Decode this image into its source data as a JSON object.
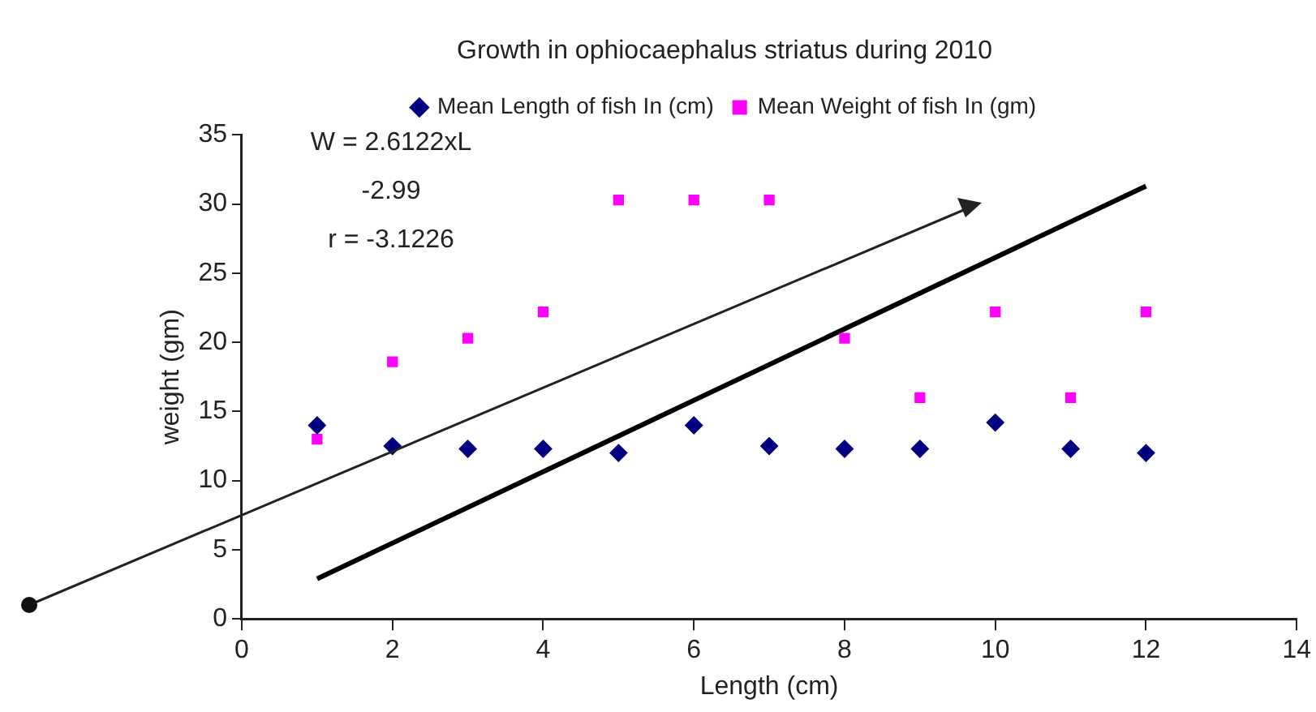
{
  "chart_data": {
    "type": "scatter",
    "title": "Growth in ophiocaephalus striatus during 2010",
    "xlabel": "Length (cm)",
    "ylabel": "weight (gm)",
    "annotations": [
      "W = 2.6122xL",
      "-2.99",
      "r = -3.1226"
    ],
    "x": [
      1,
      2,
      3,
      4,
      5,
      6,
      7,
      8,
      9,
      10,
      11,
      12
    ],
    "series": [
      {
        "name": "Mean Length of fish In (cm)",
        "color": "#000080",
        "marker": "diamond",
        "values": [
          14,
          12.5,
          12.3,
          12.3,
          12,
          14,
          12.5,
          12.3,
          12.3,
          14.2,
          12.3,
          12
        ]
      },
      {
        "name": "Mean Weight of fish In (gm)",
        "color": "#ff00ff",
        "marker": "square",
        "values": [
          13,
          18.6,
          20.3,
          22.2,
          30.3,
          30.3,
          30.3,
          20.3,
          16,
          22.2,
          16,
          22.2
        ]
      },
      {
        "type": "line",
        "color": "#000000",
        "marker": "none",
        "x": [
          1,
          12
        ],
        "values": [
          2.9,
          31.3
        ]
      }
    ],
    "xlim": [
      0,
      14
    ],
    "xticks": [
      0,
      2,
      4,
      6,
      8,
      10,
      12,
      14
    ],
    "ylim": [
      0,
      35
    ],
    "yticks": [
      0,
      5,
      10,
      15,
      20,
      25,
      30,
      35
    ],
    "grid": false,
    "legend": "top"
  }
}
